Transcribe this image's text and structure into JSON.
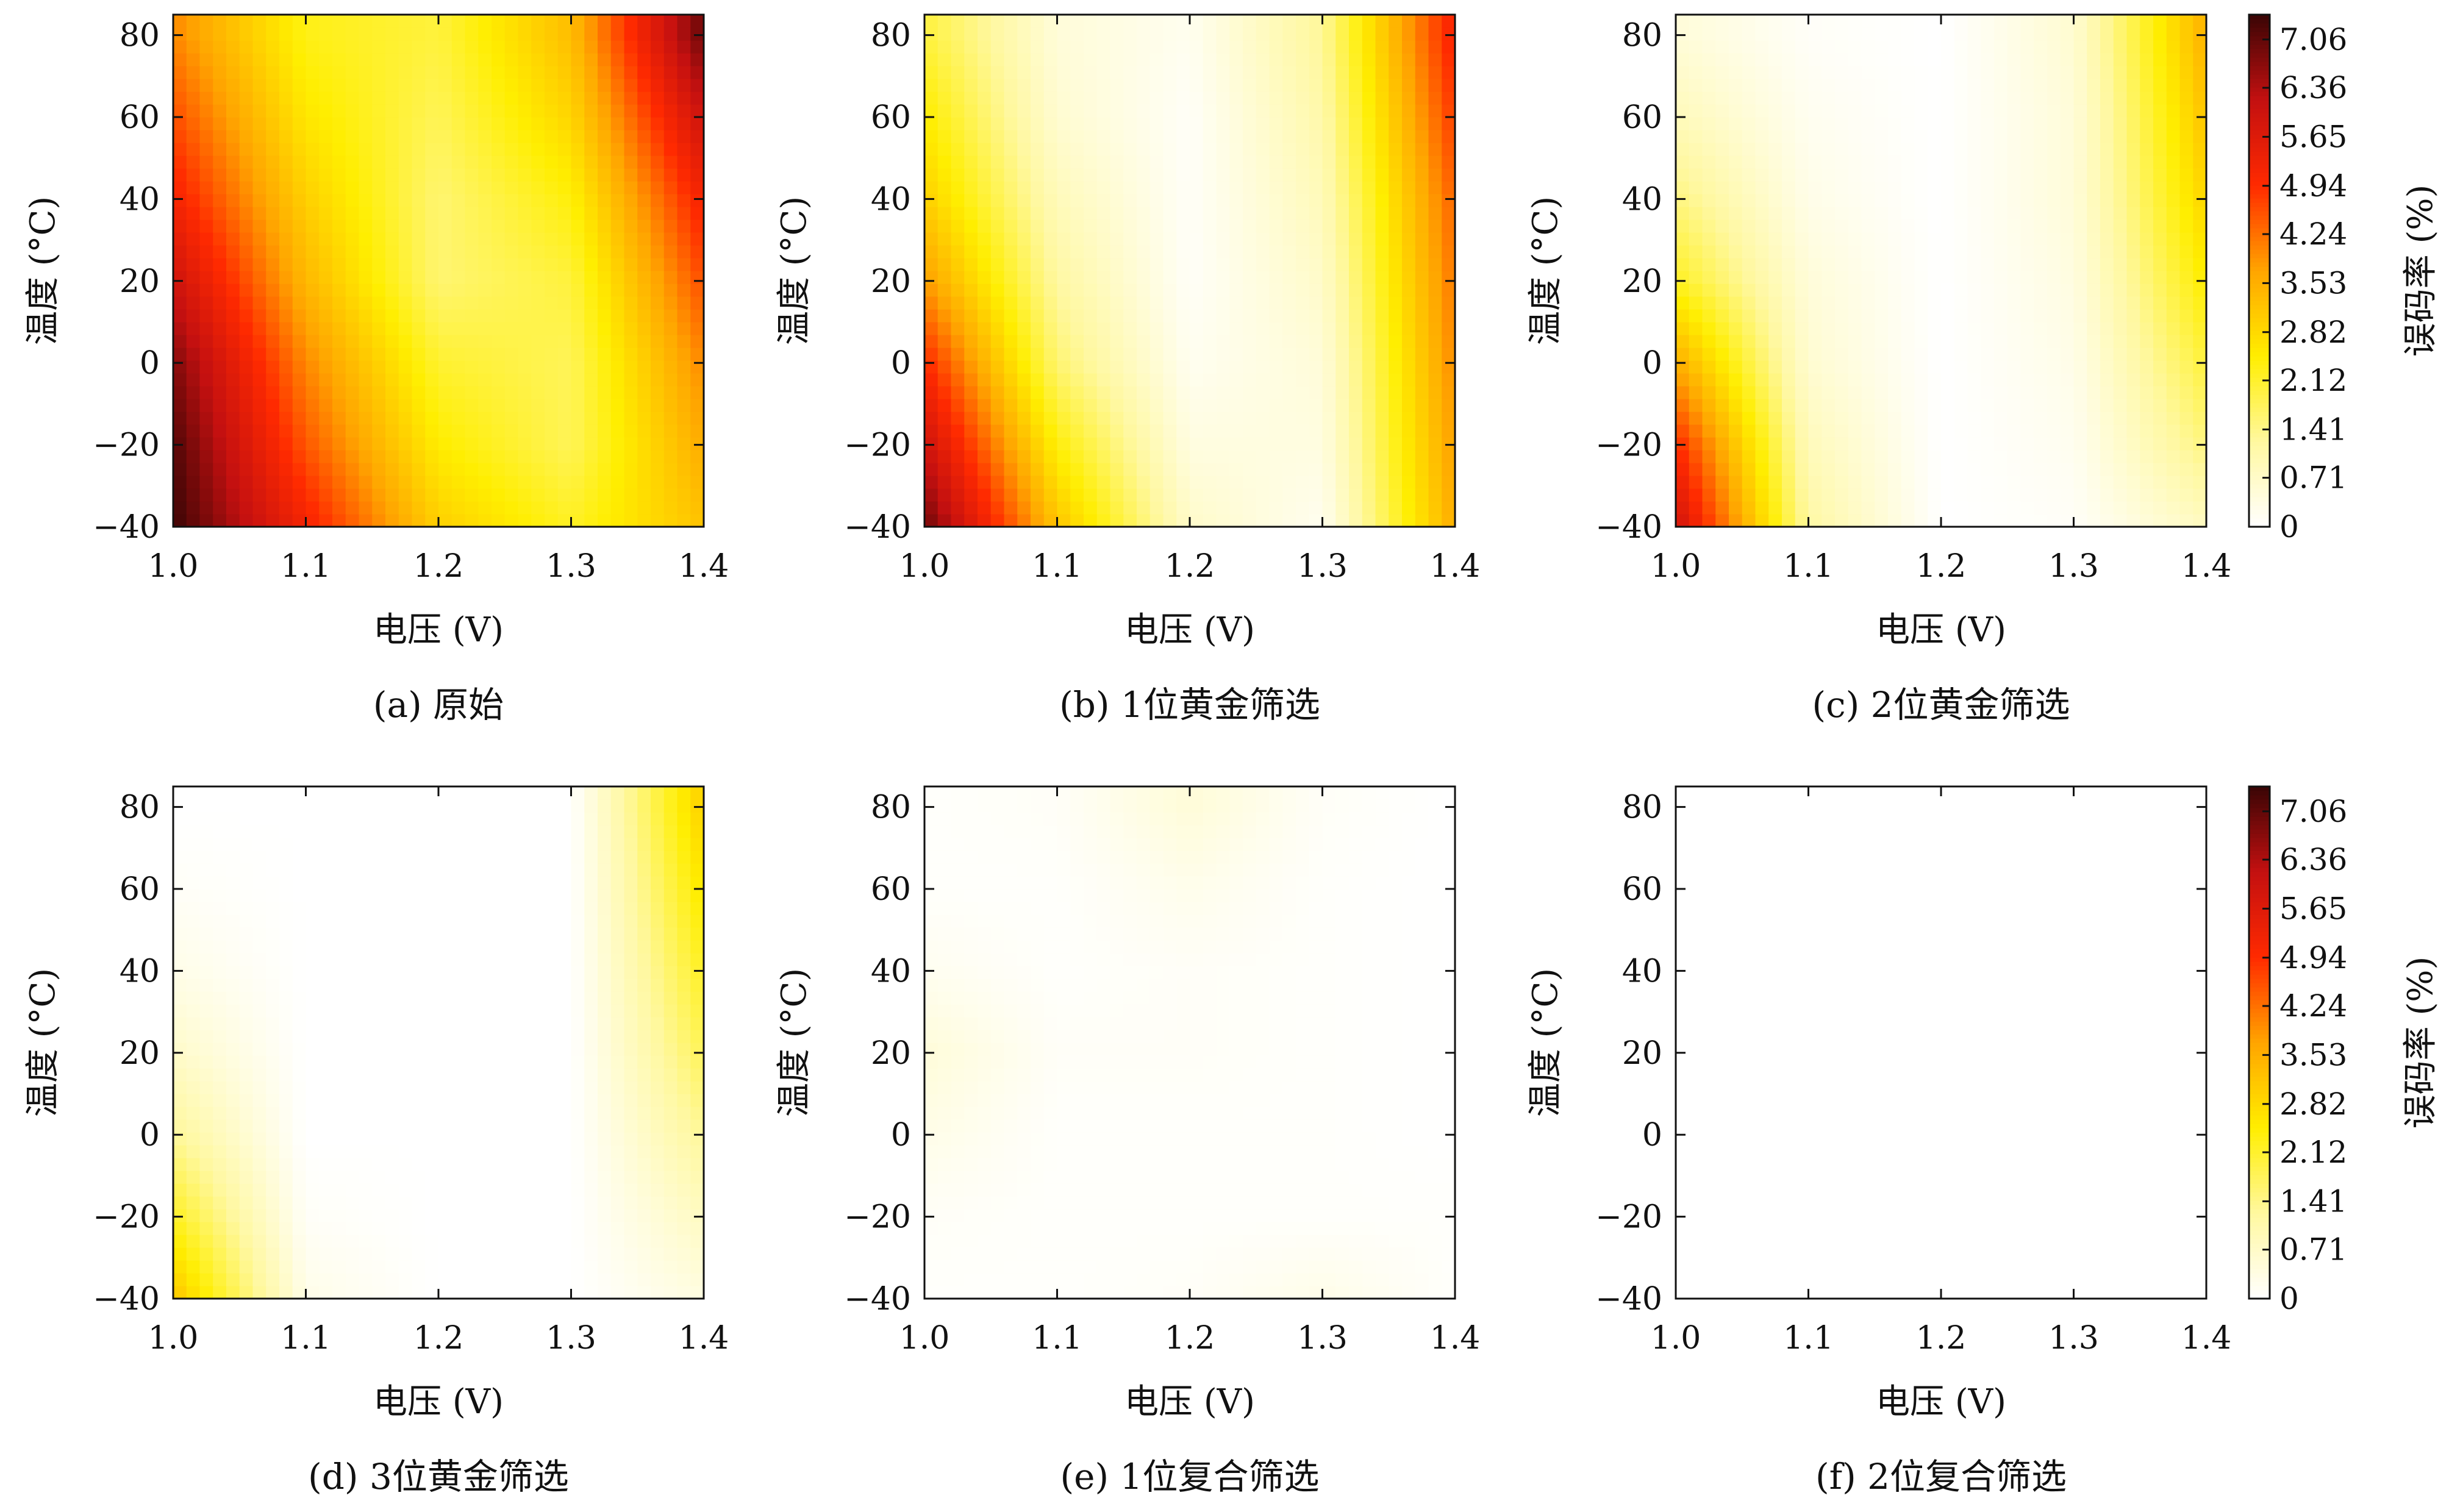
{
  "chart_data": [
    {
      "type": "heatmap",
      "caption": "(a) 原始",
      "xlabel": "电压 (V)",
      "ylabel": "温度 (°C)",
      "x": [
        1.0,
        1.1,
        1.2,
        1.3,
        1.4
      ],
      "y": [
        -40,
        -20,
        0,
        20,
        40,
        60,
        80
      ],
      "xlim": [
        1.0,
        1.4
      ],
      "ylim": [
        -40,
        85
      ],
      "z": [
        [
          7.4,
          5.2,
          3.0,
          2.2,
          3.2
        ],
        [
          7.2,
          4.5,
          2.5,
          1.8,
          3.6
        ],
        [
          6.8,
          4.0,
          2.1,
          1.8,
          4.0
        ],
        [
          6.0,
          3.4,
          1.6,
          2.0,
          4.6
        ],
        [
          5.2,
          3.0,
          1.6,
          2.4,
          5.2
        ],
        [
          4.6,
          2.6,
          1.8,
          2.9,
          6.0
        ],
        [
          4.0,
          2.3,
          2.0,
          3.3,
          7.0
        ]
      ]
    },
    {
      "type": "heatmap",
      "caption": "(b) 1位黄金筛选",
      "xlabel": "电压 (V)",
      "ylabel": "温度 (°C)",
      "x": [
        1.0,
        1.1,
        1.2,
        1.3,
        1.4
      ],
      "y": [
        -40,
        -20,
        0,
        20,
        40,
        60,
        80
      ],
      "xlim": [
        1.0,
        1.4
      ],
      "ylim": [
        -40,
        85
      ],
      "z": [
        [
          7.0,
          3.2,
          0.7,
          0.2,
          3.6
        ],
        [
          6.0,
          2.4,
          0.4,
          0.4,
          3.8
        ],
        [
          5.0,
          1.6,
          0.2,
          0.5,
          4.0
        ],
        [
          3.8,
          1.2,
          0.1,
          0.7,
          4.2
        ],
        [
          3.0,
          0.9,
          0.1,
          0.9,
          4.4
        ],
        [
          2.5,
          0.6,
          0.1,
          1.1,
          4.8
        ],
        [
          2.0,
          0.5,
          0.2,
          1.3,
          5.2
        ]
      ]
    },
    {
      "type": "heatmap",
      "caption": "(c) 2位黄金筛选",
      "xlabel": "电压 (V)",
      "ylabel": "温度 (°C)",
      "x": [
        1.0,
        1.1,
        1.2,
        1.3,
        1.4
      ],
      "y": [
        -40,
        -20,
        0,
        20,
        40,
        60,
        80
      ],
      "xlim": [
        1.0,
        1.4
      ],
      "ylim": [
        -40,
        85
      ],
      "z": [
        [
          6.0,
          1.2,
          0.0,
          0.1,
          0.8
        ],
        [
          5.0,
          0.9,
          0.0,
          0.2,
          1.5
        ],
        [
          3.6,
          0.6,
          0.0,
          0.3,
          2.0
        ],
        [
          2.2,
          0.5,
          0.0,
          0.4,
          2.5
        ],
        [
          1.5,
          0.3,
          0.0,
          0.5,
          2.9
        ],
        [
          0.9,
          0.2,
          0.0,
          0.5,
          3.2
        ],
        [
          0.5,
          0.1,
          0.0,
          0.6,
          3.5
        ]
      ]
    },
    {
      "type": "heatmap",
      "caption": "(d) 3位黄金筛选",
      "xlabel": "电压 (V)",
      "ylabel": "温度 (°C)",
      "x": [
        1.0,
        1.1,
        1.2,
        1.3,
        1.4
      ],
      "y": [
        -40,
        -20,
        0,
        20,
        40,
        60,
        80
      ],
      "xlim": [
        1.0,
        1.4
      ],
      "ylim": [
        -40,
        85
      ],
      "z": [
        [
          3.2,
          0.3,
          0.0,
          0.0,
          0.4
        ],
        [
          2.2,
          0.1,
          0.0,
          0.0,
          0.8
        ],
        [
          1.3,
          0.0,
          0.0,
          0.0,
          1.3
        ],
        [
          0.7,
          0.0,
          0.0,
          0.0,
          1.8
        ],
        [
          0.3,
          0.0,
          0.0,
          0.0,
          2.2
        ],
        [
          0.1,
          0.0,
          0.0,
          0.0,
          2.6
        ],
        [
          0.0,
          0.0,
          0.0,
          0.0,
          3.0
        ]
      ]
    },
    {
      "type": "heatmap",
      "caption": "(e) 1位复合筛选",
      "xlabel": "电压 (V)",
      "ylabel": "温度 (°C)",
      "x": [
        1.0,
        1.1,
        1.2,
        1.3,
        1.4
      ],
      "y": [
        -40,
        -20,
        0,
        20,
        40,
        60,
        80
      ],
      "xlim": [
        1.0,
        1.4
      ],
      "ylim": [
        -40,
        85
      ],
      "z": [
        [
          0.05,
          0.05,
          0.1,
          0.3,
          0.05
        ],
        [
          0.1,
          0.05,
          0.05,
          0.05,
          0.05
        ],
        [
          0.3,
          0.05,
          0.05,
          0.05,
          0.0
        ],
        [
          0.5,
          0.1,
          0.1,
          0.05,
          0.0
        ],
        [
          0.2,
          0.05,
          0.1,
          0.05,
          0.0
        ],
        [
          0.05,
          0.05,
          0.25,
          0.05,
          0.0
        ],
        [
          0.05,
          0.1,
          0.5,
          0.1,
          0.0
        ]
      ]
    },
    {
      "type": "heatmap",
      "caption": "(f) 2位复合筛选",
      "xlabel": "电压 (V)",
      "ylabel": "温度 (°C)",
      "x": [
        1.0,
        1.1,
        1.2,
        1.3,
        1.4
      ],
      "y": [
        -40,
        -20,
        0,
        20,
        40,
        60,
        80
      ],
      "xlim": [
        1.0,
        1.4
      ],
      "ylim": [
        -40,
        85
      ],
      "z": [
        [
          0,
          0,
          0,
          0,
          0
        ],
        [
          0,
          0,
          0,
          0,
          0
        ],
        [
          0,
          0,
          0,
          0,
          0
        ],
        [
          0,
          0,
          0,
          0,
          0
        ],
        [
          0,
          0,
          0,
          0,
          0
        ],
        [
          0,
          0,
          0,
          0,
          0
        ],
        [
          0,
          0,
          0,
          0,
          0
        ]
      ]
    }
  ],
  "x_ticks": [
    "1.0",
    "1.1",
    "1.2",
    "1.3",
    "1.4"
  ],
  "y_ticks": [
    "-40",
    "-20",
    "0",
    "20",
    "40",
    "60",
    "80"
  ],
  "colorbar": {
    "label": "误码率 (%)",
    "ticks": [
      "0",
      "0.71",
      "1.41",
      "2.12",
      "2.82",
      "3.53",
      "4.24",
      "4.94",
      "5.65",
      "6.36",
      "7.06"
    ],
    "range": [
      0,
      7.42
    ],
    "colormap_stops": [
      "#ffffff",
      "#fff8a0",
      "#ffee00",
      "#ffa500",
      "#ff2a00",
      "#c41010",
      "#3a0505"
    ]
  }
}
